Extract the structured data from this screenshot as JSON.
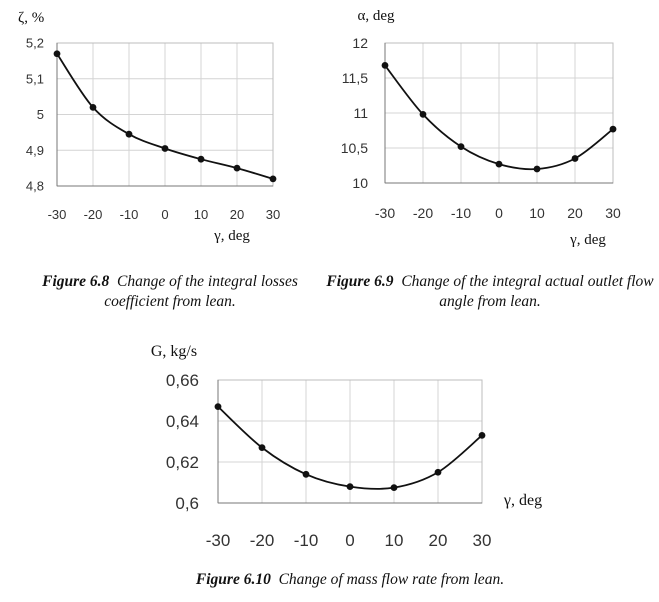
{
  "chart_data": [
    {
      "type": "line",
      "title": "",
      "ylabel": "ζ, %",
      "xlabel": "γ, deg",
      "x": [
        -30,
        -20,
        -10,
        0,
        10,
        20,
        30
      ],
      "values": [
        5.17,
        5.02,
        4.945,
        4.905,
        4.875,
        4.85,
        4.82
      ],
      "xticks": [
        "-30",
        "-20",
        "-10",
        "0",
        "10",
        "20",
        "30"
      ],
      "yticks": [
        "4,8",
        "4,9",
        "5",
        "5,1",
        "5,2"
      ],
      "ylim": [
        4.8,
        5.2
      ],
      "xlim": [
        -30,
        30
      ],
      "grid": true,
      "caption_label": "Figure 6.8",
      "caption_text": "Change of the integral losses coefficient from lean."
    },
    {
      "type": "line",
      "title": "",
      "ylabel": "α, deg",
      "xlabel": "γ, deg",
      "x": [
        -30,
        -20,
        -10,
        0,
        10,
        20,
        30
      ],
      "values": [
        11.68,
        10.98,
        10.52,
        10.27,
        10.2,
        10.35,
        10.77
      ],
      "xticks": [
        "-30",
        "-20",
        "-10",
        "0",
        "10",
        "20",
        "30"
      ],
      "yticks": [
        "10",
        "10,5",
        "11",
        "11,5",
        "12"
      ],
      "ylim": [
        10,
        12
      ],
      "xlim": [
        -30,
        30
      ],
      "grid": true,
      "caption_label": "Figure 6.9",
      "caption_text": "Change of the integral actual outlet flow angle from lean."
    },
    {
      "type": "line",
      "title": "",
      "ylabel": "G, kg/s",
      "xlabel": "γ, deg",
      "x": [
        -30,
        -20,
        -10,
        0,
        10,
        20,
        30
      ],
      "values": [
        0.647,
        0.627,
        0.614,
        0.608,
        0.6075,
        0.615,
        0.633
      ],
      "xticks": [
        "-30",
        "-20",
        "-10",
        "0",
        "10",
        "20",
        "30"
      ],
      "yticks": [
        "0,6",
        "0,62",
        "0,64",
        "0,66"
      ],
      "ylim": [
        0.6,
        0.66
      ],
      "xlim": [
        -30,
        30
      ],
      "grid": true,
      "caption_label": "Figure 6.10",
      "caption_text": "Change of mass flow rate from lean."
    }
  ]
}
